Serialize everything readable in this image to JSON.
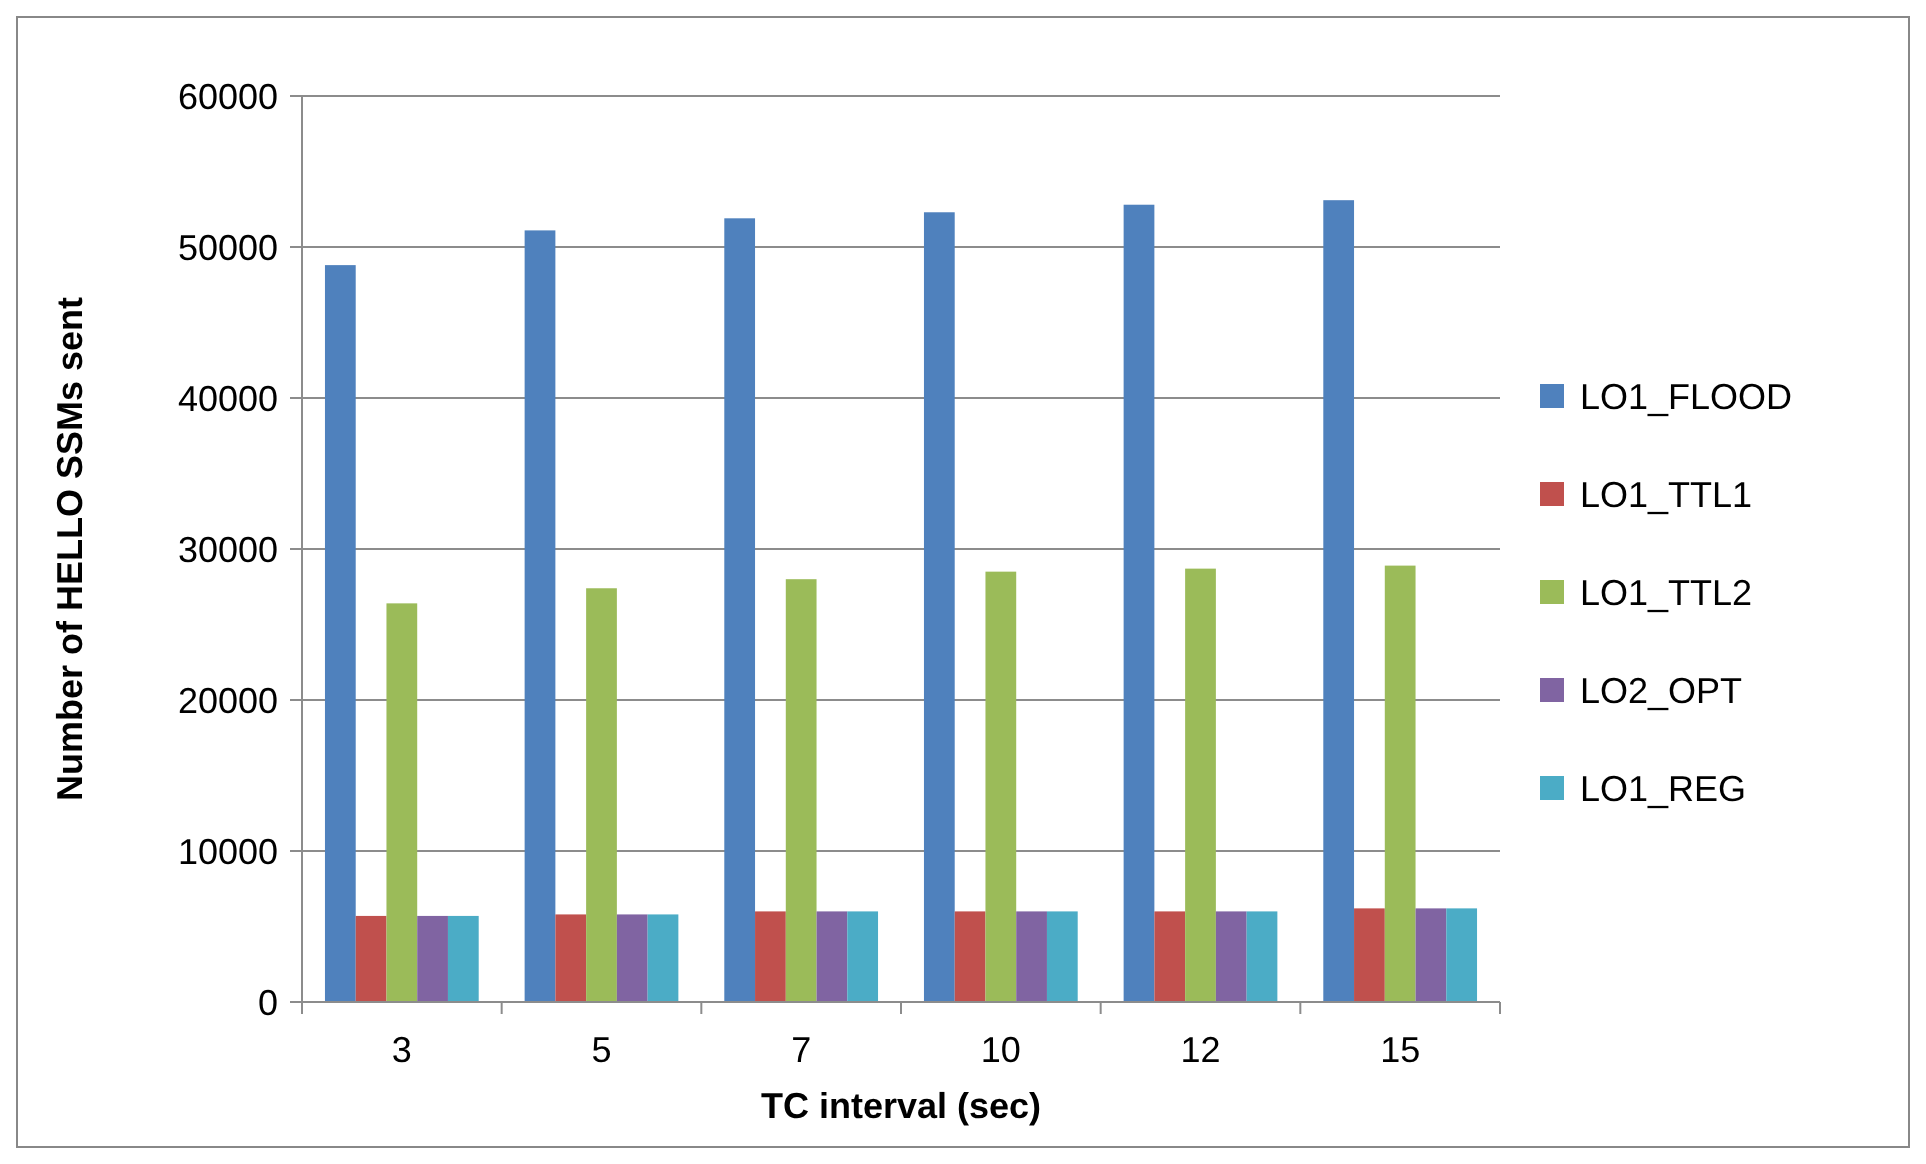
{
  "chart_data": {
    "type": "bar",
    "xlabel": "TC interval (sec)",
    "ylabel": "Number of HELLO SSMs sent",
    "categories": [
      "3",
      "5",
      "7",
      "10",
      "12",
      "15"
    ],
    "series": [
      {
        "name": "LO1_FLOOD",
        "color": "#4f81bd",
        "values": [
          48800,
          51100,
          51900,
          52300,
          52800,
          53100
        ]
      },
      {
        "name": "LO1_TTL1",
        "color": "#c0504d",
        "values": [
          5700,
          5800,
          6000,
          6000,
          6000,
          6200
        ]
      },
      {
        "name": "LO1_TTL2",
        "color": "#9bbb59",
        "values": [
          26400,
          27400,
          28000,
          28500,
          28700,
          28900
        ]
      },
      {
        "name": "LO2_OPT",
        "color": "#8064a2",
        "values": [
          5700,
          5800,
          6000,
          6000,
          6000,
          6200
        ]
      },
      {
        "name": "LO1_REG",
        "color": "#4bacc6",
        "values": [
          5700,
          5800,
          6000,
          6000,
          6000,
          6200
        ]
      }
    ],
    "ylim": [
      0,
      60000
    ],
    "yticks": [
      0,
      10000,
      20000,
      30000,
      40000,
      50000,
      60000
    ],
    "grid": "y",
    "legend": "right"
  }
}
